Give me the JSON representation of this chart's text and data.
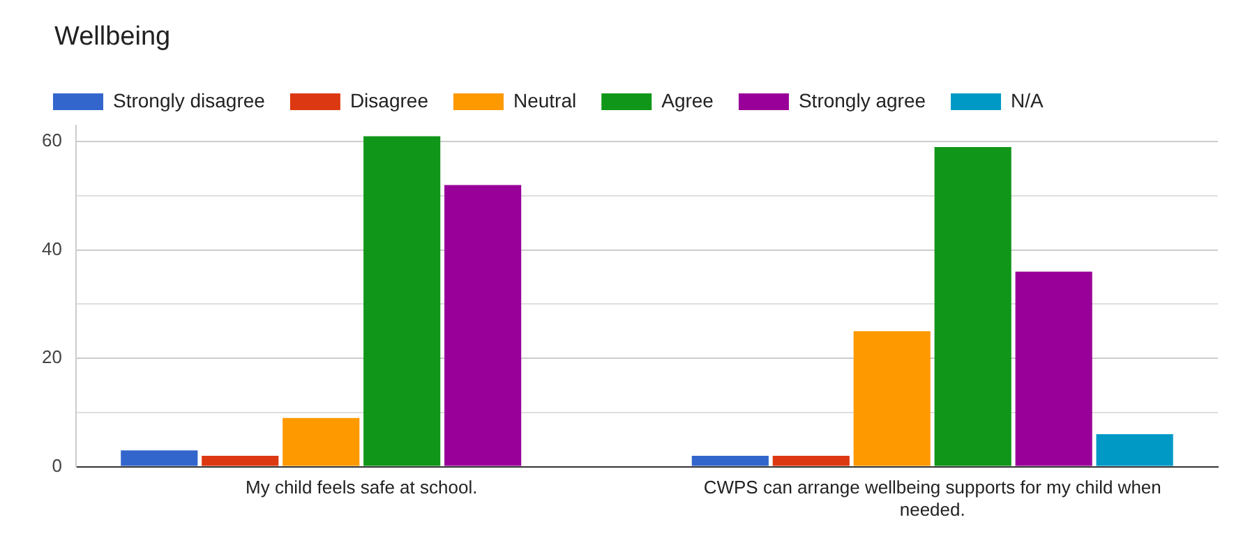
{
  "chart_data": {
    "type": "bar",
    "title": "Wellbeing",
    "categories": [
      "My child feels safe at school.",
      "CWPS can arrange wellbeing supports for my child when needed."
    ],
    "series": [
      {
        "name": "Strongly disagree",
        "color": "#3366cc",
        "values": [
          3,
          2
        ]
      },
      {
        "name": "Disagree",
        "color": "#dc3912",
        "values": [
          2,
          2
        ]
      },
      {
        "name": "Neutral",
        "color": "#ff9900",
        "values": [
          9,
          25
        ]
      },
      {
        "name": "Agree",
        "color": "#109618",
        "values": [
          61,
          59
        ]
      },
      {
        "name": "Strongly agree",
        "color": "#990099",
        "values": [
          52,
          36
        ]
      },
      {
        "name": "N/A",
        "color": "#0099c6",
        "values": [
          0,
          6
        ]
      }
    ],
    "ylim": [
      0,
      63
    ],
    "yticks": [
      0,
      {
        "value": 10,
        "label": null
      },
      20,
      {
        "value": 30,
        "label": null
      },
      40,
      {
        "value": 50,
        "label": null
      },
      60
    ],
    "grid": "y",
    "legend": "top"
  }
}
